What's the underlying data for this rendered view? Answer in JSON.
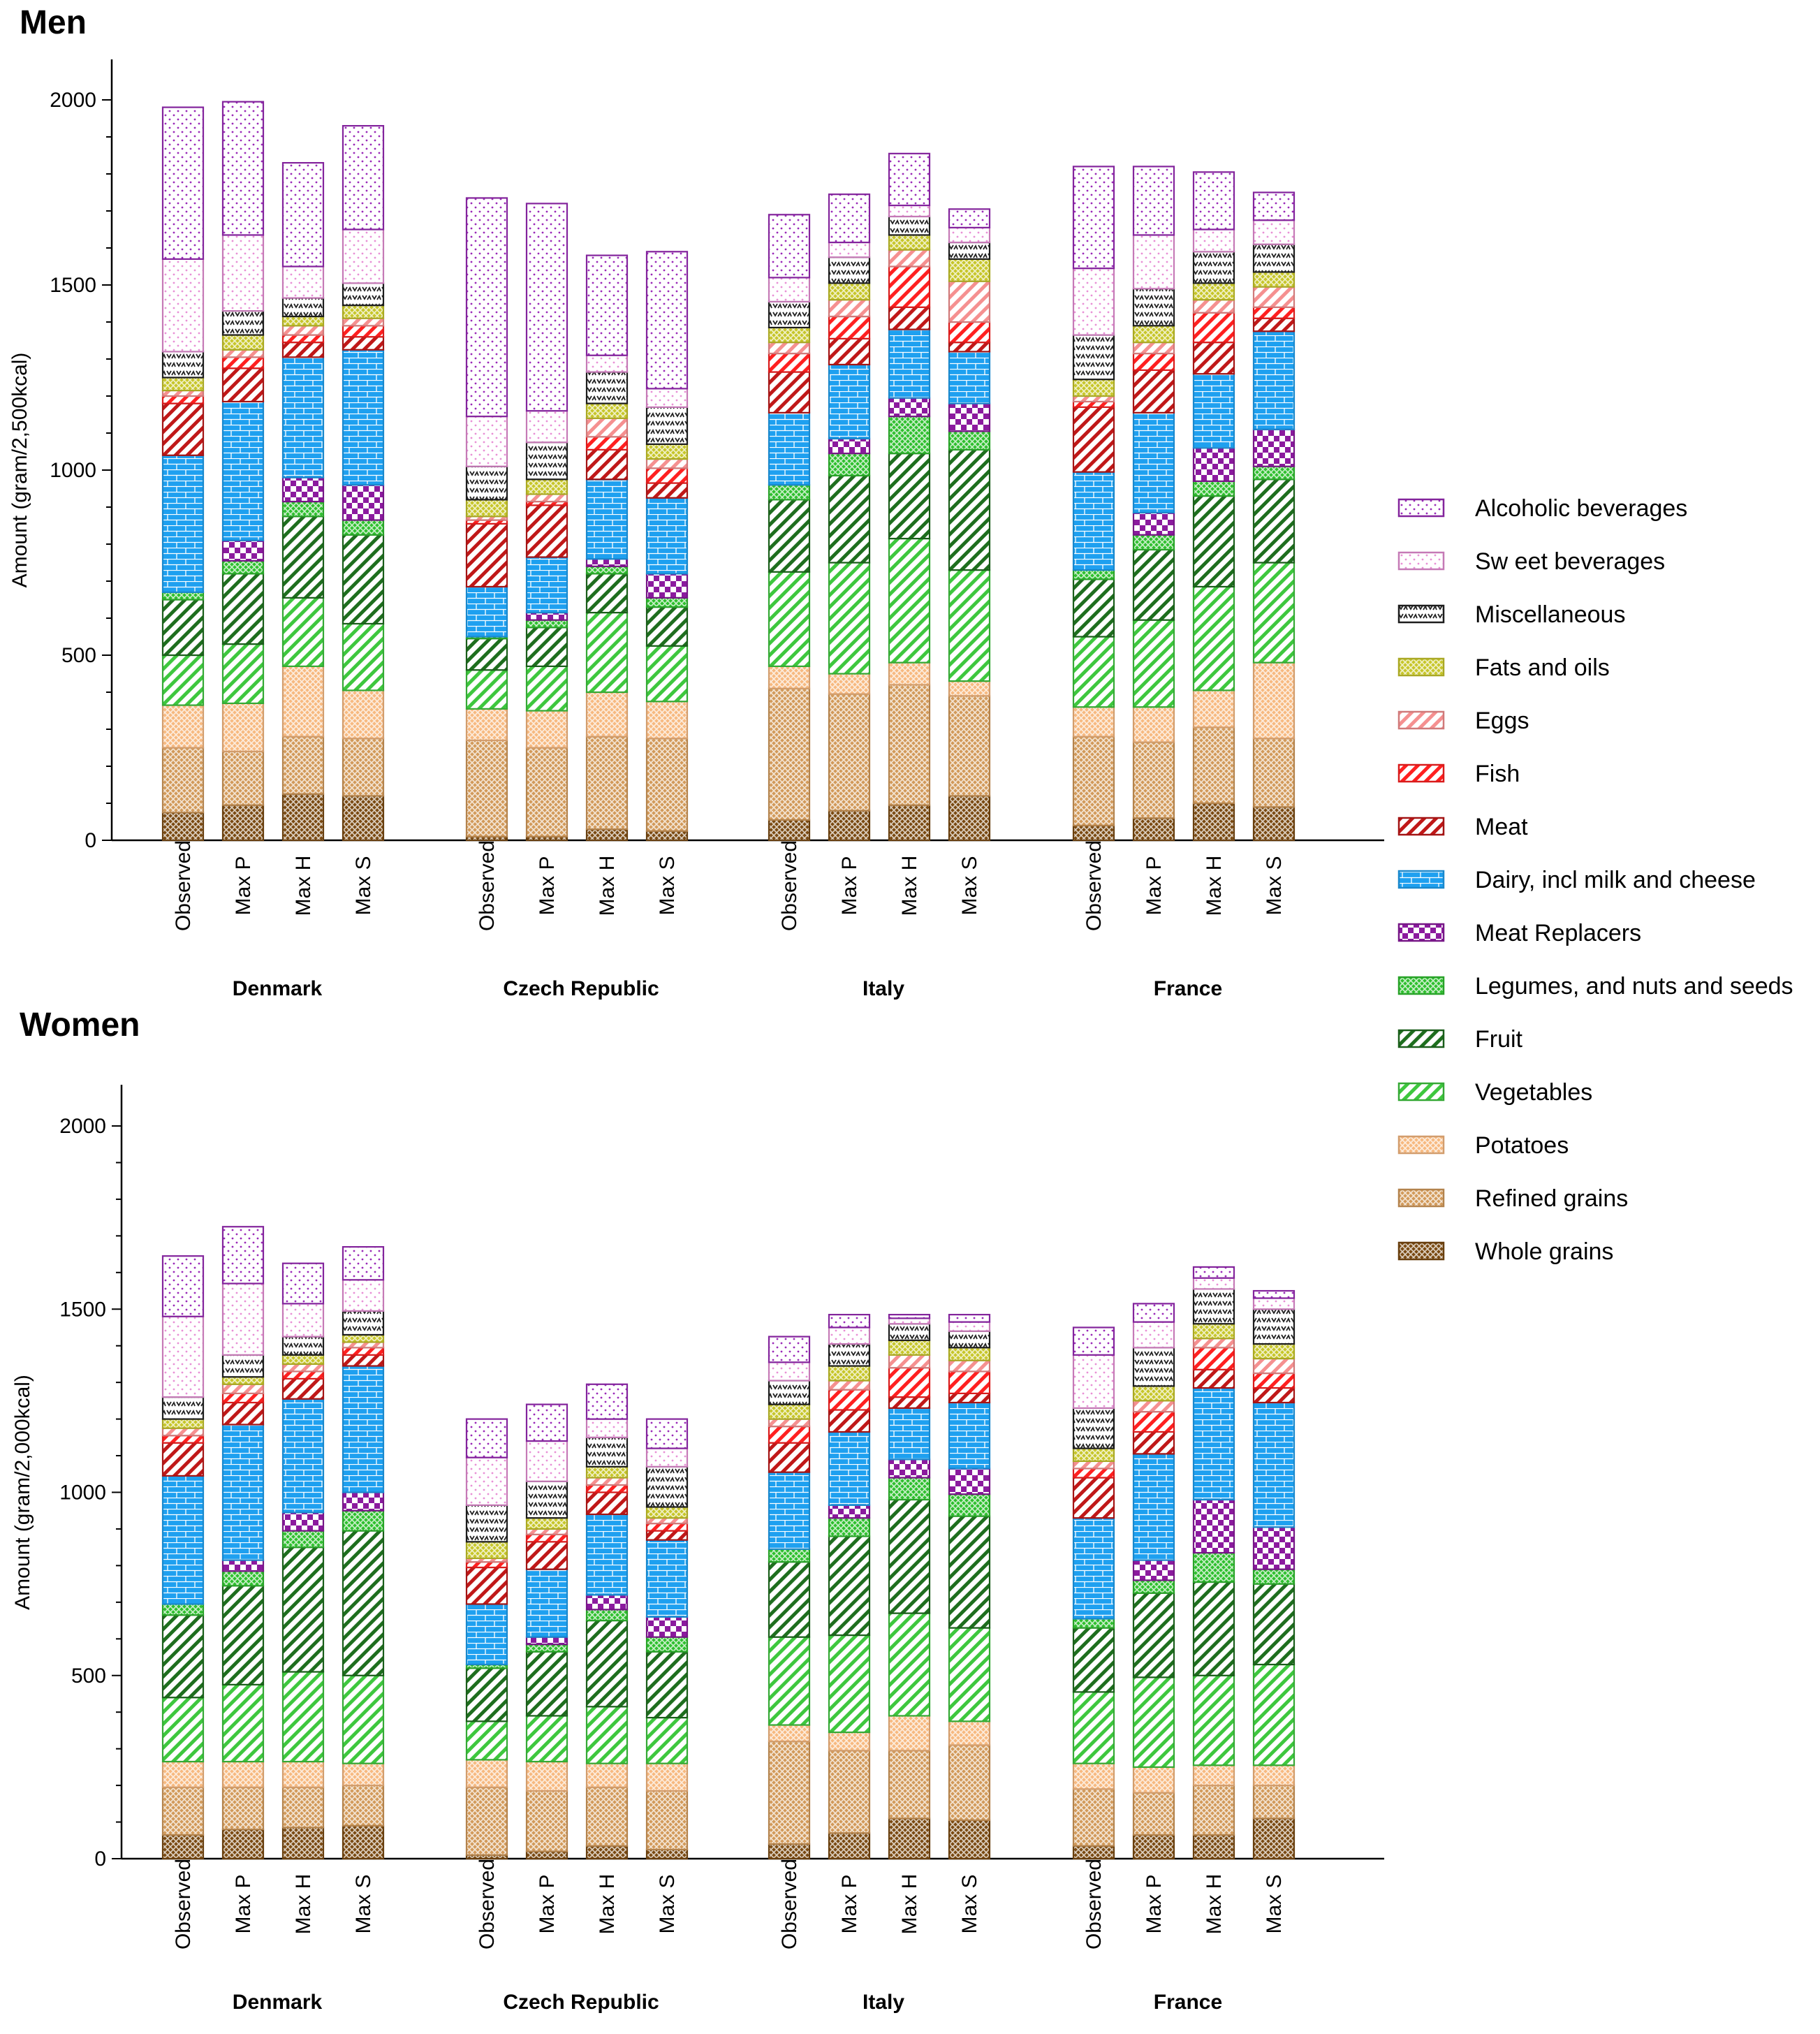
{
  "series_names": [
    "Whole grains",
    "Refined grains",
    "Potatoes",
    "Vegetables",
    "Fruit",
    "Legumes, and nuts and seeds",
    "Meat Replacers",
    "Dairy, incl milk and cheese",
    "Meat",
    "Fish",
    "Eggs",
    "Fats and oils",
    "Miscellaneous",
    "Sw eet beverages",
    "Alcoholic beverages"
  ],
  "series_colors": {
    "Whole grains": "#7a4a12",
    "Refined grains": "#d29a5a",
    "Potatoes": "#f7b980",
    "Vegetables": "#3ec73e",
    "Fruit": "#1e6e1e",
    "Legumes, and nuts and seeds": "#2fbf2f",
    "Meat Replacers": "#8b1a9e",
    "Dairy, incl milk and cheese": "#1ea0f0",
    "Meat": "#c01818",
    "Fish": "#ff2020",
    "Eggs": "#f59090",
    "Fats and oils": "#c7c62a",
    "Miscellaneous": "#222222",
    "Sw eet beverages": "#e890d6",
    "Alcoholic beverages": "#9a2ab8"
  },
  "chart_data": [
    {
      "type": "bar",
      "stacked": true,
      "title": "Men",
      "ylabel": "Amount (gram/2,500kcal)",
      "ylim": [
        0,
        2100
      ],
      "yticks": [
        0,
        500,
        1000,
        1500,
        2000
      ],
      "countries": [
        {
          "name": "Denmark",
          "bars": [
            {
              "label": "Observed",
              "values": [
                75,
                175,
                115,
                135,
                150,
                20,
                0,
                370,
                140,
                20,
                15,
                35,
                70,
                250,
                410
              ]
            },
            {
              "label": "Max P",
              "values": [
                95,
                145,
                130,
                160,
                190,
                35,
                55,
                375,
                90,
                30,
                20,
                40,
                65,
                205,
                360
              ]
            },
            {
              "label": "Max H",
              "values": [
                125,
                155,
                190,
                185,
                220,
                40,
                65,
                325,
                40,
                20,
                25,
                25,
                50,
                85,
                280
              ]
            },
            {
              "label": "Max S",
              "values": [
                120,
                155,
                130,
                180,
                240,
                40,
                95,
                365,
                35,
                30,
                20,
                35,
                60,
                145,
                280
              ]
            }
          ]
        },
        {
          "name": "Czech  Republic",
          "bars": [
            {
              "label": "Observed",
              "values": [
                10,
                260,
                85,
                105,
                85,
                5,
                0,
                135,
                170,
                10,
                10,
                45,
                90,
                135,
                590
              ]
            },
            {
              "label": "Max P",
              "values": [
                10,
                240,
                100,
                120,
                105,
                20,
                20,
                150,
                140,
                10,
                20,
                40,
                100,
                85,
                560
              ]
            },
            {
              "label": "Max H",
              "values": [
                30,
                250,
                120,
                215,
                105,
                20,
                20,
                215,
                80,
                35,
                50,
                40,
                85,
                45,
                270
              ]
            },
            {
              "label": "Max S",
              "values": [
                25,
                250,
                100,
                150,
                105,
                25,
                65,
                205,
                40,
                40,
                25,
                40,
                100,
                50,
                370
              ]
            }
          ]
        },
        {
          "name": "Italy",
          "bars": [
            {
              "label": "Observed",
              "values": [
                55,
                355,
                60,
                255,
                195,
                40,
                0,
                195,
                110,
                50,
                30,
                40,
                70,
                65,
                170
              ]
            },
            {
              "label": "Max P",
              "values": [
                80,
                315,
                55,
                300,
                235,
                60,
                40,
                200,
                70,
                60,
                45,
                45,
                70,
                40,
                130
              ]
            },
            {
              "label": "Max H",
              "values": [
                95,
                325,
                60,
                335,
                230,
                100,
                50,
                185,
                60,
                110,
                45,
                40,
                50,
                30,
                140
              ]
            },
            {
              "label": "Max S",
              "values": [
                120,
                270,
                40,
                300,
                325,
                50,
                75,
                140,
                25,
                55,
                110,
                60,
                45,
                40,
                50
              ]
            }
          ]
        },
        {
          "name": "France",
          "bars": [
            {
              "label": "Observed",
              "values": [
                40,
                240,
                80,
                190,
                155,
                25,
                0,
                265,
                175,
                15,
                15,
                45,
                120,
                180,
                275
              ]
            },
            {
              "label": "Max P",
              "values": [
                60,
                205,
                95,
                235,
                190,
                40,
                60,
                270,
                115,
                45,
                30,
                45,
                100,
                145,
                185
              ]
            },
            {
              "label": "Max H",
              "values": [
                100,
                205,
                100,
                280,
                245,
                40,
                90,
                200,
                85,
                80,
                35,
                45,
                85,
                60,
                155
              ]
            },
            {
              "label": "Max S",
              "values": [
                90,
                185,
                205,
                270,
                225,
                35,
                100,
                265,
                35,
                30,
                55,
                40,
                75,
                65,
                75
              ]
            }
          ]
        }
      ]
    },
    {
      "type": "bar",
      "stacked": true,
      "title": "Women",
      "ylabel": "Amount (gram/2,000kcal)",
      "ylim": [
        0,
        2100
      ],
      "yticks": [
        0,
        500,
        1000,
        1500,
        2000
      ],
      "countries": [
        {
          "name": "Denmark",
          "bars": [
            {
              "label": "Observed",
              "values": [
                65,
                130,
                70,
                175,
                225,
                30,
                0,
                350,
                90,
                20,
                20,
                25,
                60,
                220,
                165
              ]
            },
            {
              "label": "Max P",
              "values": [
                80,
                115,
                70,
                210,
                270,
                40,
                30,
                370,
                60,
                25,
                25,
                20,
                60,
                195,
                155
              ]
            },
            {
              "label": "Max H",
              "values": [
                85,
                110,
                70,
                245,
                340,
                45,
                50,
                310,
                55,
                20,
                20,
                25,
                50,
                90,
                110
              ]
            },
            {
              "label": "Max S",
              "values": [
                90,
                110,
                60,
                240,
                395,
                55,
                50,
                345,
                30,
                20,
                15,
                20,
                65,
                85,
                90
              ]
            }
          ]
        },
        {
          "name": "Czech  Republic",
          "bars": [
            {
              "label": "Observed",
              "values": [
                10,
                185,
                75,
                105,
                145,
                10,
                0,
                165,
                100,
                15,
                10,
                45,
                100,
                130,
                105
              ]
            },
            {
              "label": "Max P",
              "values": [
                20,
                165,
                80,
                125,
                175,
                20,
                20,
                185,
                75,
                20,
                15,
                30,
                100,
                110,
                100
              ]
            },
            {
              "label": "Max H",
              "values": [
                35,
                160,
                65,
                155,
                235,
                30,
                40,
                220,
                60,
                20,
                20,
                30,
                80,
                50,
                95
              ]
            },
            {
              "label": "Max S",
              "values": [
                25,
                160,
                75,
                125,
                180,
                40,
                55,
                210,
                25,
                20,
                15,
                30,
                110,
                50,
                80
              ]
            }
          ]
        },
        {
          "name": "Italy",
          "bars": [
            {
              "label": "Observed",
              "values": [
                40,
                280,
                45,
                240,
                205,
                35,
                0,
                210,
                80,
                45,
                20,
                40,
                65,
                50,
                70
              ]
            },
            {
              "label": "Max P",
              "values": [
                70,
                225,
                50,
                265,
                270,
                50,
                35,
                200,
                60,
                55,
                25,
                40,
                60,
                45,
                35
              ]
            },
            {
              "label": "Max H",
              "values": [
                110,
                185,
                95,
                280,
                310,
                60,
                50,
                140,
                30,
                80,
                35,
                40,
                45,
                15,
                10
              ]
            },
            {
              "label": "Max S",
              "values": [
                105,
                205,
                65,
                255,
                305,
                60,
                70,
                180,
                25,
                60,
                30,
                35,
                45,
                25,
                20
              ]
            }
          ]
        },
        {
          "name": "France",
          "bars": [
            {
              "label": "Observed",
              "values": [
                35,
                155,
                70,
                195,
                175,
                25,
                0,
                275,
                110,
                25,
                20,
                35,
                110,
                145,
                75
              ]
            },
            {
              "label": "Max P",
              "values": [
                65,
                115,
                70,
                245,
                230,
                35,
                55,
                290,
                60,
                55,
                30,
                40,
                105,
                70,
                50
              ]
            },
            {
              "label": "Max H",
              "values": [
                65,
                135,
                55,
                245,
                255,
                80,
                145,
                305,
                50,
                60,
                25,
                40,
                95,
                30,
                30
              ]
            },
            {
              "label": "Max S",
              "values": [
                110,
                90,
                55,
                275,
                220,
                40,
                115,
                340,
                40,
                40,
                40,
                40,
                95,
                30,
                20
              ]
            }
          ]
        }
      ]
    }
  ]
}
